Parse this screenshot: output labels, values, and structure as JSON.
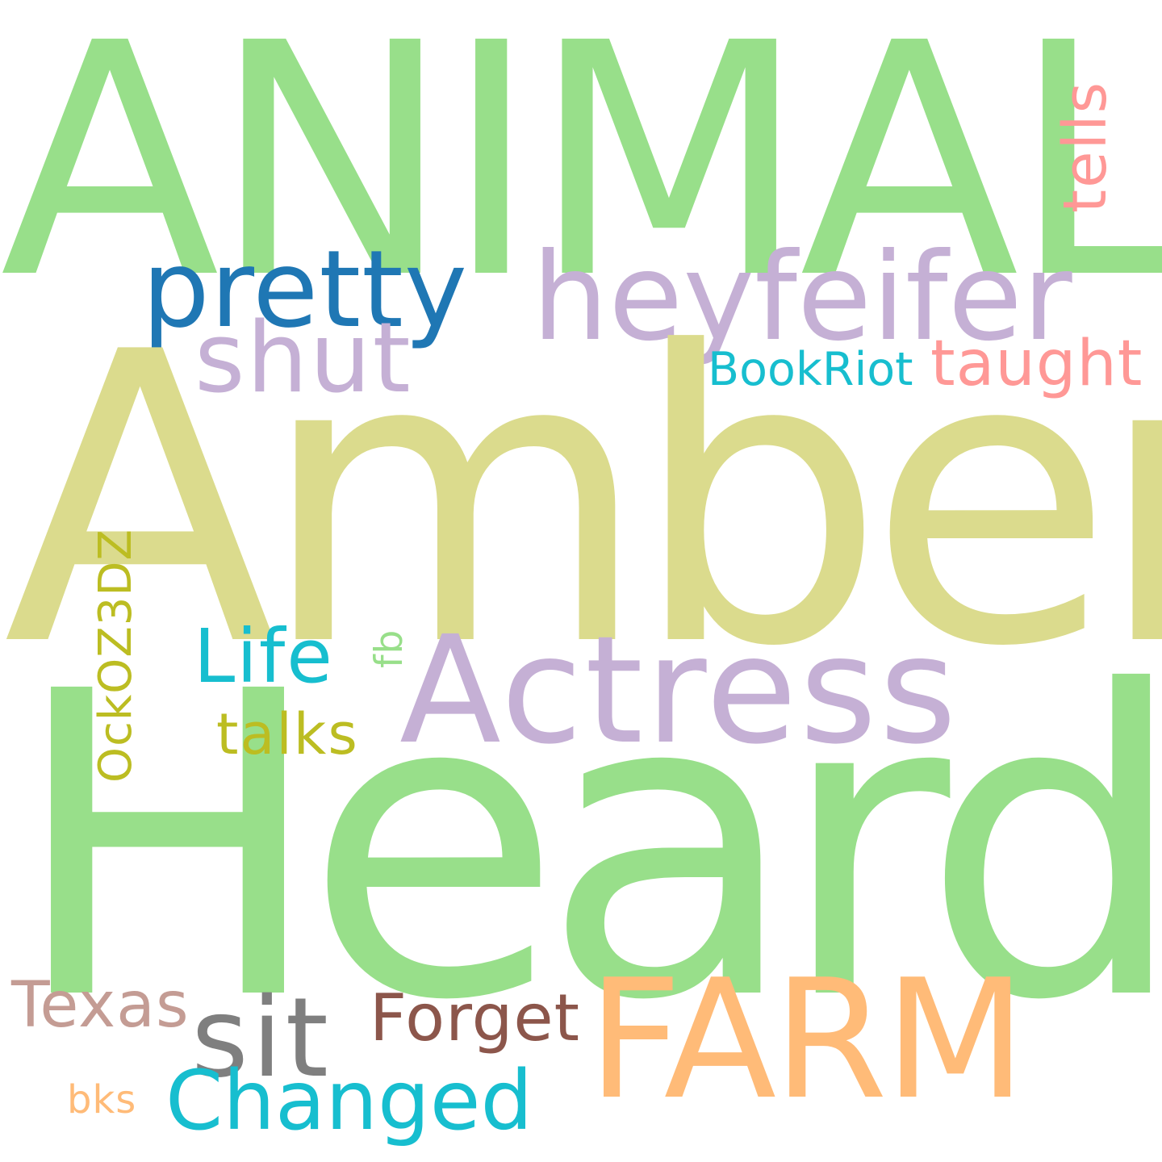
{
  "background": "#ffffff",
  "words": {
    "animal": {
      "text": "ANIMAL",
      "color": "#98df8a",
      "orientation": "horizontal"
    },
    "amber": {
      "text": "Amber",
      "color": "#dbdb8d",
      "orientation": "horizontal"
    },
    "heard": {
      "text": "Heard",
      "color": "#98df8a",
      "orientation": "horizontal"
    },
    "heyfeifer": {
      "text": "heyfeifer",
      "color": "#c5b0d5",
      "orientation": "horizontal"
    },
    "pretty": {
      "text": "pretty",
      "color": "#1f77b4",
      "orientation": "horizontal"
    },
    "shut": {
      "text": "shut",
      "color": "#c5b0d5",
      "orientation": "horizontal"
    },
    "taught": {
      "text": "taught",
      "color": "#ff9896",
      "orientation": "horizontal"
    },
    "bookriot": {
      "text": "BookRiot",
      "color": "#17becf",
      "orientation": "horizontal"
    },
    "tells": {
      "text": "tells",
      "color": "#ff9896",
      "orientation": "vertical"
    },
    "actress": {
      "text": "Actress",
      "color": "#c5b0d5",
      "orientation": "horizontal"
    },
    "life": {
      "text": "Life",
      "color": "#17becf",
      "orientation": "horizontal"
    },
    "fb": {
      "text": "fb",
      "color": "#98df8a",
      "orientation": "vertical"
    },
    "ock": {
      "text": "OckOZ3DZ",
      "color": "#bcbd22",
      "orientation": "vertical"
    },
    "talks": {
      "text": "talks",
      "color": "#bcbd22",
      "orientation": "horizontal"
    },
    "farm": {
      "text": "FARM",
      "color": "#ffbb78",
      "orientation": "horizontal"
    },
    "sit": {
      "text": "sit",
      "color": "#7f7f7f",
      "orientation": "horizontal"
    },
    "forget": {
      "text": "Forget",
      "color": "#8c564b",
      "orientation": "horizontal"
    },
    "texas": {
      "text": "Texas",
      "color": "#c49c94",
      "orientation": "horizontal"
    },
    "changed": {
      "text": "Changed",
      "color": "#17becf",
      "orientation": "horizontal"
    },
    "bks": {
      "text": "bks",
      "color": "#ffbb78",
      "orientation": "horizontal"
    }
  }
}
